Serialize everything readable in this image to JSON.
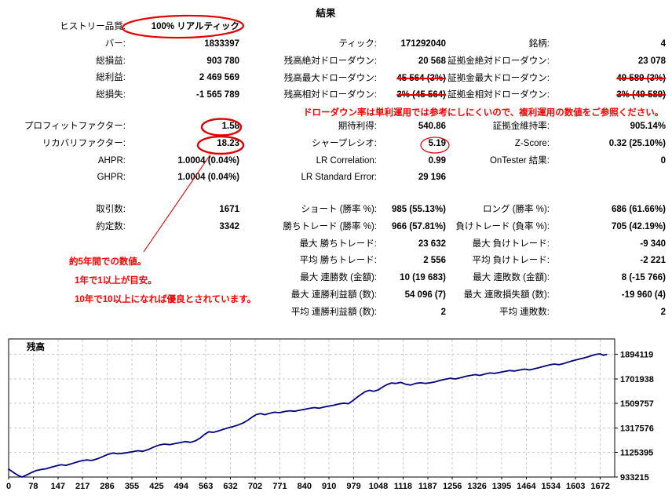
{
  "title": "結果",
  "colors": {
    "annotation_red": "#e00000",
    "note_red": "#fd0000",
    "line_navy": "#000080",
    "grid_gray": "#c9c9c9"
  },
  "stats": {
    "columns": [
      {
        "sections": [
          {
            "rows": [
              {
                "label": "ヒストリー品質:",
                "value": "100% リアルティック",
                "circled": true
              },
              {
                "label": "バー:",
                "value": "1833397"
              },
              {
                "label": "総損益:",
                "value": "903 780"
              },
              {
                "label": "総利益:",
                "value": "2 469 569"
              },
              {
                "label": "総損失:",
                "value": "-1 565 789"
              }
            ]
          },
          {
            "rows": [
              {
                "label": "プロフィットファクター:",
                "value": "1.58",
                "circled": true
              },
              {
                "label": "リカバリファクター:",
                "value": "18.23",
                "circled": true
              },
              {
                "label": "AHPR:",
                "value": "1.0004 (0.04%)"
              },
              {
                "label": "GHPR:",
                "value": "1.0004 (0.04%)"
              }
            ]
          },
          {
            "rows": [
              {
                "label": "取引数:",
                "value": "1671"
              },
              {
                "label": "約定数:",
                "value": "3342"
              }
            ]
          }
        ]
      },
      {
        "sections": [
          {
            "rows": [
              {
                "label": "ティック:",
                "value": "171292040"
              },
              {
                "label": "残高絶対ドローダウン:",
                "value": "20 568"
              },
              {
                "label": "残高最大ドローダウン:",
                "value": "45 564 (3%)",
                "strike": true
              },
              {
                "label": "残高相対ドローダウン:",
                "value": "3% (45 564)",
                "strike": true
              }
            ]
          },
          {
            "rows": [
              {
                "label": "期待利得:",
                "value": "540.86"
              },
              {
                "label": "シャープレシオ:",
                "value": "5.19",
                "circled": true
              },
              {
                "label": "LR Correlation:",
                "value": "0.99"
              },
              {
                "label": "LR Standard Error:",
                "value": "29 196"
              }
            ]
          },
          {
            "rows": [
              {
                "label": "ショート (勝率 %):",
                "value": "985 (55.13%)"
              },
              {
                "label": "勝ちトレード (勝率 %):",
                "value": "966 (57.81%)"
              },
              {
                "label": "最大 勝ちトレード:",
                "value": "23 632"
              },
              {
                "label": "平均 勝ちトレード:",
                "value": "2 556"
              },
              {
                "label": "最大 連勝数 (金額):",
                "value": "10 (19 683)"
              },
              {
                "label": "最大 連勝利益額 (数):",
                "value": "54 096 (7)"
              },
              {
                "label": "平均 連勝利益額 (数):",
                "value": "2"
              }
            ]
          }
        ]
      },
      {
        "sections": [
          {
            "rows": [
              {
                "label": "銘柄:",
                "value": "4"
              },
              {
                "label": "証拠金絶対ドローダウン:",
                "value": "23 078"
              },
              {
                "label": "証拠金最大ドローダウン:",
                "value": "49 589 (3%)",
                "strike": true
              },
              {
                "label": "証拠金相対ドローダウン:",
                "value": "3% (49 589)",
                "strike": true
              }
            ]
          },
          {
            "rows": [
              {
                "label": "証拠金維持率:",
                "value": "905.14%"
              },
              {
                "label": "Z-Score:",
                "value": "0.32 (25.10%)"
              },
              {
                "label": "OnTester 結果:",
                "value": "0"
              }
            ]
          },
          {
            "rows": [
              {
                "label": "ロング (勝率 %):",
                "value": "686 (61.66%)"
              },
              {
                "label": "負けトレード (負率 %):",
                "value": "705 (42.19%)"
              },
              {
                "label": "最大 負けトレード:",
                "value": "-9 340"
              },
              {
                "label": "平均 負けトレード:",
                "value": "-2 221"
              },
              {
                "label": "最大 連敗数 (金額):",
                "value": "8 (-15 766)"
              },
              {
                "label": "最大 連敗損失額 (数):",
                "value": "-19 960 (4)"
              },
              {
                "label": "平均 連敗数:",
                "value": "2"
              }
            ]
          }
        ]
      }
    ]
  },
  "annotations": {
    "drawdown_note": "ドローダウン率は単利運用では参考にしにくいので、複利運用の数値をご参照ください。",
    "recovery_notes": [
      "約5年間での数値。",
      "1年で1以上が目安。",
      "10年で10以上になれば優良とされています。"
    ]
  },
  "chart_data": {
    "type": "line",
    "title": "残高",
    "xlabel": "",
    "ylabel": "残高",
    "x_ticks": [
      0,
      78,
      147,
      217,
      286,
      355,
      425,
      494,
      563,
      632,
      702,
      771,
      840,
      910,
      979,
      1048,
      1118,
      1187,
      1256,
      1326,
      1395,
      1464,
      1534,
      1603,
      1672
    ],
    "y_ticks": [
      1894119,
      1701938,
      1509757,
      1317576,
      1125395,
      933215
    ],
    "ylim": [
      933215,
      2015000
    ],
    "grid": true,
    "legend_position": "none",
    "line_color": "#000080",
    "grid_color": "#c9c9c9",
    "series": [
      {
        "name": "残高",
        "points": [
          [
            0,
            995000
          ],
          [
            10,
            976000
          ],
          [
            20,
            958000
          ],
          [
            30,
            942000
          ],
          [
            38,
            933215
          ],
          [
            47,
            944000
          ],
          [
            56,
            956000
          ],
          [
            66,
            970000
          ],
          [
            78,
            984000
          ],
          [
            92,
            992000
          ],
          [
            106,
            998000
          ],
          [
            120,
            1010000
          ],
          [
            134,
            1020000
          ],
          [
            148,
            1029000
          ],
          [
            162,
            1025000
          ],
          [
            176,
            1036000
          ],
          [
            190,
            1048000
          ],
          [
            205,
            1060000
          ],
          [
            220,
            1067000
          ],
          [
            235,
            1063000
          ],
          [
            250,
            1075000
          ],
          [
            265,
            1092000
          ],
          [
            280,
            1110000
          ],
          [
            295,
            1121000
          ],
          [
            308,
            1115000
          ],
          [
            322,
            1119000
          ],
          [
            336,
            1125000
          ],
          [
            350,
            1131000
          ],
          [
            365,
            1139000
          ],
          [
            380,
            1135000
          ],
          [
            395,
            1149000
          ],
          [
            410,
            1168000
          ],
          [
            425,
            1183000
          ],
          [
            440,
            1191000
          ],
          [
            455,
            1187000
          ],
          [
            470,
            1195000
          ],
          [
            485,
            1203000
          ],
          [
            500,
            1211000
          ],
          [
            514,
            1205000
          ],
          [
            528,
            1217000
          ],
          [
            542,
            1240000
          ],
          [
            554,
            1268000
          ],
          [
            566,
            1288000
          ],
          [
            578,
            1283000
          ],
          [
            592,
            1293000
          ],
          [
            606,
            1306000
          ],
          [
            620,
            1318000
          ],
          [
            634,
            1328000
          ],
          [
            648,
            1340000
          ],
          [
            662,
            1356000
          ],
          [
            676,
            1378000
          ],
          [
            688,
            1402000
          ],
          [
            700,
            1422000
          ],
          [
            712,
            1430000
          ],
          [
            724,
            1421000
          ],
          [
            738,
            1433000
          ],
          [
            752,
            1441000
          ],
          [
            766,
            1437000
          ],
          [
            780,
            1446000
          ],
          [
            794,
            1452000
          ],
          [
            808,
            1448000
          ],
          [
            822,
            1456000
          ],
          [
            836,
            1463000
          ],
          [
            850,
            1471000
          ],
          [
            864,
            1477000
          ],
          [
            878,
            1472000
          ],
          [
            892,
            1481000
          ],
          [
            906,
            1489000
          ],
          [
            920,
            1496000
          ],
          [
            934,
            1506000
          ],
          [
            948,
            1512000
          ],
          [
            960,
            1507000
          ],
          [
            972,
            1530000
          ],
          [
            984,
            1556000
          ],
          [
            996,
            1580000
          ],
          [
            1008,
            1602000
          ],
          [
            1020,
            1612000
          ],
          [
            1032,
            1605000
          ],
          [
            1045,
            1616000
          ],
          [
            1058,
            1640000
          ],
          [
            1070,
            1658000
          ],
          [
            1082,
            1670000
          ],
          [
            1094,
            1666000
          ],
          [
            1108,
            1674000
          ],
          [
            1122,
            1660000
          ],
          [
            1136,
            1653000
          ],
          [
            1150,
            1666000
          ],
          [
            1164,
            1671000
          ],
          [
            1178,
            1667000
          ],
          [
            1192,
            1671000
          ],
          [
            1206,
            1679000
          ],
          [
            1220,
            1690000
          ],
          [
            1234,
            1699000
          ],
          [
            1248,
            1707000
          ],
          [
            1262,
            1701000
          ],
          [
            1276,
            1710000
          ],
          [
            1290,
            1720000
          ],
          [
            1304,
            1728000
          ],
          [
            1318,
            1735000
          ],
          [
            1332,
            1729000
          ],
          [
            1346,
            1739000
          ],
          [
            1360,
            1748000
          ],
          [
            1374,
            1745000
          ],
          [
            1388,
            1753000
          ],
          [
            1402,
            1760000
          ],
          [
            1416,
            1767000
          ],
          [
            1430,
            1763000
          ],
          [
            1444,
            1771000
          ],
          [
            1458,
            1778000
          ],
          [
            1472,
            1772000
          ],
          [
            1486,
            1781000
          ],
          [
            1500,
            1790000
          ],
          [
            1514,
            1801000
          ],
          [
            1528,
            1811000
          ],
          [
            1542,
            1818000
          ],
          [
            1556,
            1813000
          ],
          [
            1570,
            1823000
          ],
          [
            1584,
            1836000
          ],
          [
            1598,
            1846000
          ],
          [
            1612,
            1856000
          ],
          [
            1626,
            1866000
          ],
          [
            1640,
            1877000
          ],
          [
            1652,
            1888000
          ],
          [
            1662,
            1895000
          ],
          [
            1672,
            1898000
          ],
          [
            1681,
            1887000
          ],
          [
            1690,
            1893000
          ]
        ]
      }
    ]
  }
}
